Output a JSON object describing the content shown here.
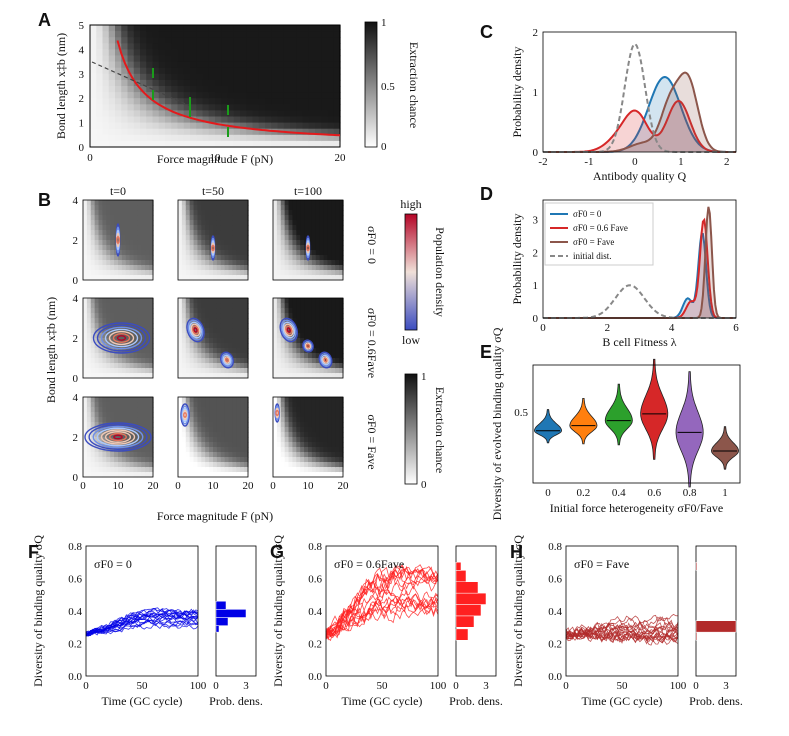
{
  "panels": {
    "A": {
      "label": "A",
      "xlabel": "Force magnitude F (pN)",
      "ylabel": "Bond length x‡b (nm)",
      "xticks": [
        "0",
        "10",
        "20"
      ],
      "yticks": [
        "0",
        "1",
        "2",
        "3",
        "4",
        "5"
      ],
      "colorbar": {
        "title": "Extraction chance",
        "ticks": [
          "1",
          "0.5",
          "0"
        ]
      }
    },
    "B": {
      "label": "B",
      "titles": [
        "t=0",
        "t=50",
        "t=100"
      ],
      "xlabel": "Force magnitude F (pN)",
      "ylabel": "Bond length x‡b (nm)",
      "xticks": [
        "0",
        "10",
        "20"
      ],
      "yticks": [
        "0",
        "2",
        "4"
      ],
      "row_labels": [
        "σF0 = 0",
        "σF0 = 0.6Fave",
        "σF0 = Fave"
      ],
      "colorbar_pop": {
        "title": "Population density",
        "high": "high",
        "low": "low"
      },
      "colorbar_ext": {
        "title": "Extraction chance",
        "ticks": [
          "1",
          "0"
        ]
      }
    },
    "C": {
      "label": "C"
    },
    "D": {
      "label": "D"
    },
    "E": {
      "label": "E"
    },
    "F": {
      "label": "F"
    },
    "G": {
      "label": "G"
    },
    "H": {
      "label": "H"
    }
  },
  "chart_data": [
    {
      "id": "C",
      "type": "area",
      "title": "",
      "xlabel": "Antibody quality Q",
      "ylabel": "Probability density",
      "xlim": [
        -2,
        2.2
      ],
      "ylim": [
        0,
        2
      ],
      "xticks": [
        "-2",
        "-1",
        "0",
        "1",
        "2"
      ],
      "yticks": [
        "0",
        "1",
        "2"
      ],
      "series": [
        {
          "name": "σF0 = 0",
          "color": "#1f77b4",
          "peaks": [
            [
              0.65,
              0.35,
              1.25
            ]
          ]
        },
        {
          "name": "σF0 = 0.6Fave",
          "color": "#d62728",
          "peaks": [
            [
              0.05,
              0.25,
              0.55
            ],
            [
              0.95,
              0.25,
              0.85
            ],
            [
              -0.3,
              0.3,
              0.25
            ]
          ]
        },
        {
          "name": "σF0 = Fave",
          "color": "#8c564b",
          "peaks": [
            [
              1.15,
              0.22,
              1.2
            ],
            [
              0.75,
              0.2,
              0.7
            ],
            [
              0.2,
              0.3,
              0.15
            ]
          ]
        },
        {
          "name": "initial dist.",
          "color": "#888888",
          "dashed": true,
          "peaks": [
            [
              0.0,
              0.22,
              1.8
            ]
          ]
        }
      ]
    },
    {
      "id": "D",
      "type": "area",
      "xlabel": "B cell Fitness λ",
      "ylabel": "Probability density",
      "xlim": [
        0,
        6
      ],
      "ylim": [
        0,
        3.6
      ],
      "xticks": [
        "0",
        "2",
        "4",
        "6"
      ],
      "yticks": [
        "0",
        "1",
        "2",
        "3"
      ],
      "legend": [
        "σF0 = 0",
        "σF0 = 0.6 Fave",
        "σF0 = Fave",
        "initial dist."
      ],
      "series": [
        {
          "name": "σF0 = 0",
          "color": "#1f77b4",
          "peaks": [
            [
              4.95,
              0.12,
              2.6
            ],
            [
              4.5,
              0.15,
              0.6
            ]
          ]
        },
        {
          "name": "σF0 = 0.6 Fave",
          "color": "#d62728",
          "peaks": [
            [
              5.0,
              0.12,
              3.0
            ],
            [
              4.6,
              0.15,
              0.5
            ]
          ]
        },
        {
          "name": "σF0 = Fave",
          "color": "#8c564b",
          "peaks": [
            [
              5.15,
              0.1,
              3.4
            ]
          ]
        },
        {
          "name": "initial dist.",
          "color": "#888888",
          "dashed": true,
          "peaks": [
            [
              2.7,
              0.45,
              1.0
            ]
          ]
        }
      ]
    },
    {
      "id": "E",
      "type": "violin",
      "xlabel": "Initial force heterogeneity σF0/Fave",
      "ylabel": "Diversity of evolved binding quality σQ",
      "categories": [
        "0",
        "0.2",
        "0.4",
        "0.6",
        "0.8",
        "1"
      ],
      "medians": [
        0.39,
        0.42,
        0.45,
        0.49,
        0.38,
        0.27
      ],
      "ylim": [
        0.08,
        0.78
      ],
      "yticks": [
        "0.5"
      ],
      "colors": [
        "#1f77b4",
        "#ff7f0e",
        "#2ca02c",
        "#d62728",
        "#9467bd",
        "#8c564b"
      ]
    },
    {
      "id": "F",
      "type": "line",
      "title": "σF0 = 0",
      "xlabel": "Time (GC cycle)",
      "ylabel": "Diversity of binding quality σQ",
      "xlim": [
        0,
        100
      ],
      "ylim": [
        0,
        0.8
      ],
      "xticks": [
        "0",
        "50",
        "100"
      ],
      "yticks": [
        "0.0",
        "0.2",
        "0.4",
        "0.6",
        "0.8"
      ],
      "color": "#0000e6",
      "start": 0.26,
      "end_mean": 0.36,
      "end_spread": 0.06,
      "noise": 0.015,
      "hist": {
        "bins": [
          0.27,
          0.31,
          0.36,
          0.41
        ],
        "values": [
          0.3,
          1.2,
          3.0,
          1.0
        ],
        "xticks": [
          "0",
          "3"
        ],
        "xlabel": "Prob. dens."
      }
    },
    {
      "id": "G",
      "type": "line",
      "title": "σF0 = 0.6Fave",
      "xlabel": "Time (GC cycle)",
      "ylabel": "Diversity of binding quality σQ",
      "xlim": [
        0,
        100
      ],
      "ylim": [
        0,
        0.8
      ],
      "xticks": [
        "0",
        "50",
        "100"
      ],
      "yticks": [
        "0.0",
        "0.2",
        "0.4",
        "0.6",
        "0.8"
      ],
      "color": "#ff2020",
      "start": 0.26,
      "end_mean": 0.44,
      "end_spread": 0.2,
      "noise": 0.04,
      "hist": {
        "bins": [
          0.22,
          0.3,
          0.37,
          0.44,
          0.51,
          0.58,
          0.65
        ],
        "values": [
          1.2,
          1.8,
          2.5,
          3.0,
          2.2,
          1.0,
          0.5
        ],
        "xticks": [
          "0",
          "3"
        ],
        "xlabel": "Prob. dens."
      }
    },
    {
      "id": "H",
      "type": "line",
      "title": "σF0 = Fave",
      "xlabel": "Time (GC cycle)",
      "ylabel": "Diversity of binding quality σQ",
      "xlim": [
        0,
        100
      ],
      "ylim": [
        0,
        0.8
      ],
      "xticks": [
        "0",
        "50",
        "100"
      ],
      "yticks": [
        "0.0",
        "0.2",
        "0.4",
        "0.6",
        "0.8"
      ],
      "color": "#b22a2a",
      "start": 0.26,
      "end_mean": 0.28,
      "end_spread": 0.06,
      "noise": 0.03,
      "hist": {
        "bins": [
          0.22,
          0.27,
          0.65
        ],
        "values": [
          0.1,
          4.0,
          0.1
        ],
        "xticks": [
          "0",
          "3"
        ],
        "xlabel": "Prob. dens."
      }
    }
  ]
}
